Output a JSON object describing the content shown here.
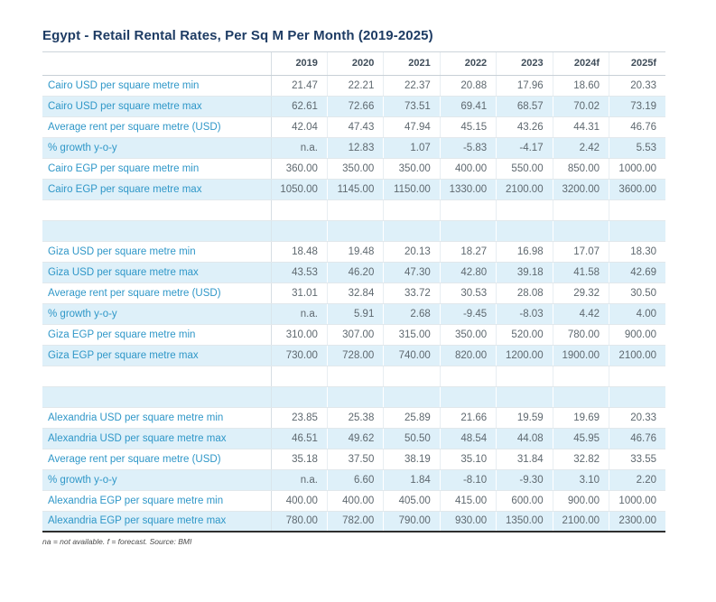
{
  "page": {
    "title": "Egypt - Retail Rental Rates, Per Sq M Per Month (2019-2025)",
    "footnote": "na = not available. f = forecast. Source: BMI"
  },
  "colors": {
    "title_navy": "#1e3c64",
    "label_blue": "#2f97c8",
    "row_stripe_blue": "#def0f9",
    "value_gray": "#5e686f",
    "bottom_rule_dark": "#2e2e2e"
  },
  "table": {
    "columns": [
      "2019",
      "2020",
      "2021",
      "2022",
      "2023",
      "2024f",
      "2025f"
    ],
    "sections": [
      {
        "rows": [
          {
            "label": "Cairo USD per square metre min",
            "values": [
              "21.47",
              "22.21",
              "22.37",
              "20.88",
              "17.96",
              "18.60",
              "20.33"
            ]
          },
          {
            "label": "Cairo USD per square metre max",
            "values": [
              "62.61",
              "72.66",
              "73.51",
              "69.41",
              "68.57",
              "70.02",
              "73.19"
            ]
          },
          {
            "label": "Average rent per square metre (USD)",
            "values": [
              "42.04",
              "47.43",
              "47.94",
              "45.15",
              "43.26",
              "44.31",
              "46.76"
            ]
          },
          {
            "label": "% growth y-o-y",
            "values": [
              "n.a.",
              "12.83",
              "1.07",
              "-5.83",
              "-4.17",
              "2.42",
              "5.53"
            ]
          },
          {
            "label": "Cairo EGP per square metre min",
            "values": [
              "360.00",
              "350.00",
              "350.00",
              "400.00",
              "550.00",
              "850.00",
              "1000.00"
            ]
          },
          {
            "label": "Cairo EGP per square metre max",
            "values": [
              "1050.00",
              "1145.00",
              "1150.00",
              "1330.00",
              "2100.00",
              "3200.00",
              "3600.00"
            ]
          }
        ]
      },
      {
        "rows": [
          {
            "label": "Giza USD per square metre min",
            "values": [
              "18.48",
              "19.48",
              "20.13",
              "18.27",
              "16.98",
              "17.07",
              "18.30"
            ]
          },
          {
            "label": "Giza USD per square metre max",
            "values": [
              "43.53",
              "46.20",
              "47.30",
              "42.80",
              "39.18",
              "41.58",
              "42.69"
            ]
          },
          {
            "label": "Average rent per square metre (USD)",
            "values": [
              "31.01",
              "32.84",
              "33.72",
              "30.53",
              "28.08",
              "29.32",
              "30.50"
            ]
          },
          {
            "label": "% growth y-o-y",
            "values": [
              "n.a.",
              "5.91",
              "2.68",
              "-9.45",
              "-8.03",
              "4.42",
              "4.00"
            ]
          },
          {
            "label": "Giza EGP per square metre min",
            "values": [
              "310.00",
              "307.00",
              "315.00",
              "350.00",
              "520.00",
              "780.00",
              "900.00"
            ]
          },
          {
            "label": "Giza EGP per square metre max",
            "values": [
              "730.00",
              "728.00",
              "740.00",
              "820.00",
              "1200.00",
              "1900.00",
              "2100.00"
            ]
          }
        ]
      },
      {
        "rows": [
          {
            "label": "Alexandria USD per square metre min",
            "values": [
              "23.85",
              "25.38",
              "25.89",
              "21.66",
              "19.59",
              "19.69",
              "20.33"
            ]
          },
          {
            "label": "Alexandria USD per square metre max",
            "values": [
              "46.51",
              "49.62",
              "50.50",
              "48.54",
              "44.08",
              "45.95",
              "46.76"
            ]
          },
          {
            "label": "Average rent per square metre (USD)",
            "values": [
              "35.18",
              "37.50",
              "38.19",
              "35.10",
              "31.84",
              "32.82",
              "33.55"
            ]
          },
          {
            "label": "% growth y-o-y",
            "values": [
              "n.a.",
              "6.60",
              "1.84",
              "-8.10",
              "-9.30",
              "3.10",
              "2.20"
            ]
          },
          {
            "label": "Alexandria EGP per square metre min",
            "values": [
              "400.00",
              "400.00",
              "405.00",
              "415.00",
              "600.00",
              "900.00",
              "1000.00"
            ]
          },
          {
            "label": "Alexandria EGP per square metre max",
            "values": [
              "780.00",
              "782.00",
              "790.00",
              "930.00",
              "1350.00",
              "2100.00",
              "2300.00"
            ]
          }
        ]
      }
    ]
  }
}
